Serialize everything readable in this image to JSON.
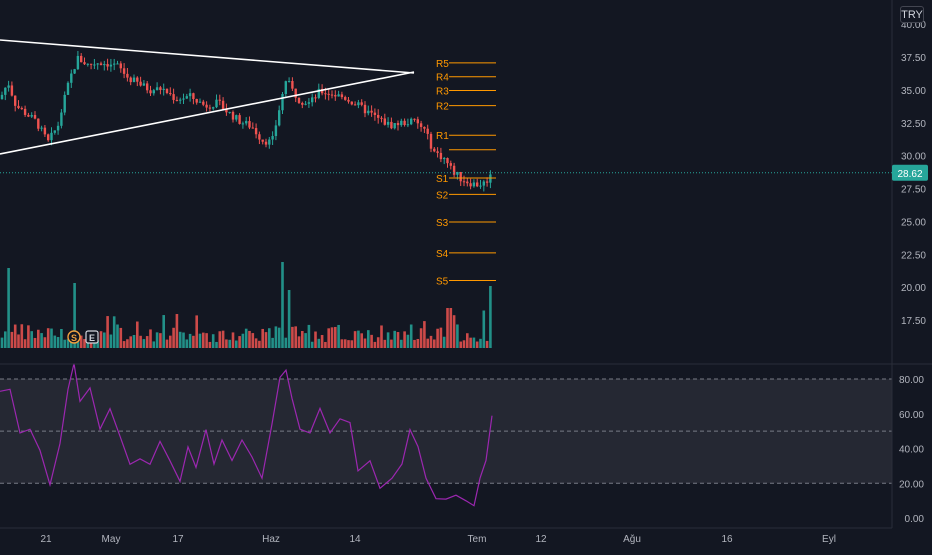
{
  "currency": "TRY",
  "last_price": "28.62",
  "price_axis": {
    "min": 16.0,
    "max": 40.0,
    "ticks": [
      "40.00",
      "37.50",
      "35.00",
      "32.50",
      "30.00",
      "27.50",
      "25.00",
      "22.50",
      "20.00",
      "17.50"
    ]
  },
  "rsi_axis": {
    "min": 0,
    "max": 100,
    "ticks": [
      "80.00",
      "60.00",
      "40.00",
      "20.00",
      "0.00"
    ],
    "upper_band": 80,
    "mid_band": 50,
    "lower_band": 20
  },
  "time_axis": [
    "21",
    "May",
    "17",
    "Haz",
    "14",
    "Tem",
    "12",
    "Ağu",
    "16",
    "Eyl"
  ],
  "pivot_levels": [
    {
      "label": "R5",
      "value": 37.05
    },
    {
      "label": "R4",
      "value": 36.0
    },
    {
      "label": "R3",
      "value": 34.95
    },
    {
      "label": "R2",
      "value": 33.8
    },
    {
      "label": "R1",
      "value": 31.55
    },
    {
      "label": "",
      "value": 30.45
    },
    {
      "label": "S1",
      "value": 28.3
    },
    {
      "label": "S2",
      "value": 27.05
    },
    {
      "label": "S3",
      "value": 24.95
    },
    {
      "label": "S4",
      "value": 22.6
    },
    {
      "label": "S5",
      "value": 20.5
    }
  ],
  "event_markers": [
    {
      "symbol": "S",
      "color": "#f0a040"
    },
    {
      "symbol": "E",
      "color": "#d1d4dc"
    }
  ],
  "colors": {
    "up": "#26a69a",
    "down": "#ef5350",
    "rsi": "#9c27b0",
    "pivot": "#ff9800",
    "trendline": "#ffffff",
    "last_price_line": "#26a69a"
  },
  "chart_data": {
    "type": "candlestick",
    "price_range": [
      16.0,
      40.0
    ],
    "last_close": 28.62,
    "volume_series": "relative bars under price",
    "rsi_range": [
      0,
      100
    ],
    "rsi_levels": [
      80,
      50,
      20
    ]
  }
}
